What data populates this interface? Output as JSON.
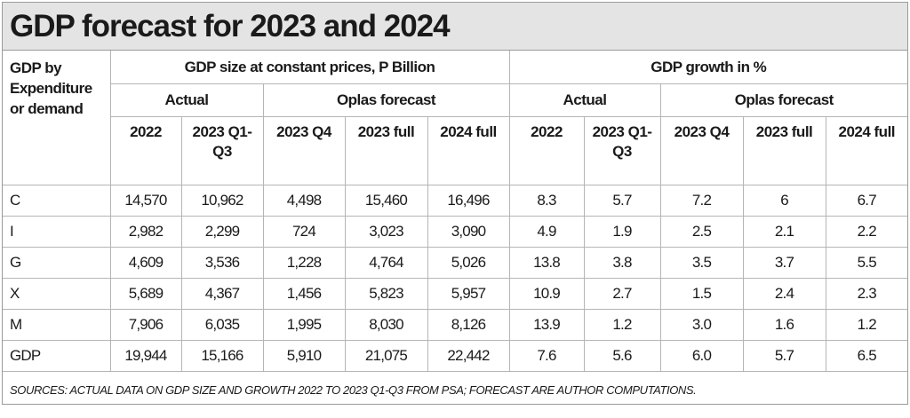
{
  "title": "GDP forecast for 2023 and 2024",
  "header": {
    "corner": "GDP by Expenditure or demand",
    "group_size": "GDP size at constant prices, P Billion",
    "group_growth": "GDP growth in %",
    "actual": "Actual",
    "forecast": "Oplas forecast",
    "columns": [
      "2022",
      "2023 Q1-Q3",
      "2023 Q4",
      "2023 full",
      "2024 full",
      "2022",
      "2023 Q1-Q3",
      "2023 Q4",
      "2023 full",
      "2024 full"
    ]
  },
  "rows": [
    {
      "label": "C",
      "values": [
        "14,570",
        "10,962",
        "4,498",
        "15,460",
        "16,496",
        "8.3",
        "5.7",
        "7.2",
        "6",
        "6.7"
      ]
    },
    {
      "label": "I",
      "values": [
        "2,982",
        "2,299",
        "724",
        "3,023",
        "3,090",
        "4.9",
        "1.9",
        "2.5",
        "2.1",
        "2.2"
      ]
    },
    {
      "label": "G",
      "values": [
        "4,609",
        "3,536",
        "1,228",
        "4,764",
        "5,026",
        "13.8",
        "3.8",
        "3.5",
        "3.7",
        "5.5"
      ]
    },
    {
      "label": "X",
      "values": [
        "5,689",
        "4,367",
        "1,456",
        "5,823",
        "5,957",
        "10.9",
        "2.7",
        "1.5",
        "2.4",
        "2.3"
      ]
    },
    {
      "label": "M",
      "values": [
        "7,906",
        "6,035",
        "1,995",
        "8,030",
        "8,126",
        "13.9",
        "1.2",
        "3.0",
        "1.6",
        "1.2"
      ]
    },
    {
      "label": "GDP",
      "values": [
        "19,944",
        "15,166",
        "5,910",
        "21,075",
        "22,442",
        "7.6",
        "5.6",
        "6.0",
        "5.7",
        "6.5"
      ]
    }
  ],
  "footer": "SOURCES: ACTUAL DATA ON GDP SIZE AND GROWTH 2022 TO 2023 Q1-Q3 FROM PSA; FORECAST ARE AUTHOR COMPUTATIONS.",
  "colors": {
    "title_bg": "#e4e4e4",
    "border": "#b5b5b5",
    "text": "#1a1a1a"
  }
}
